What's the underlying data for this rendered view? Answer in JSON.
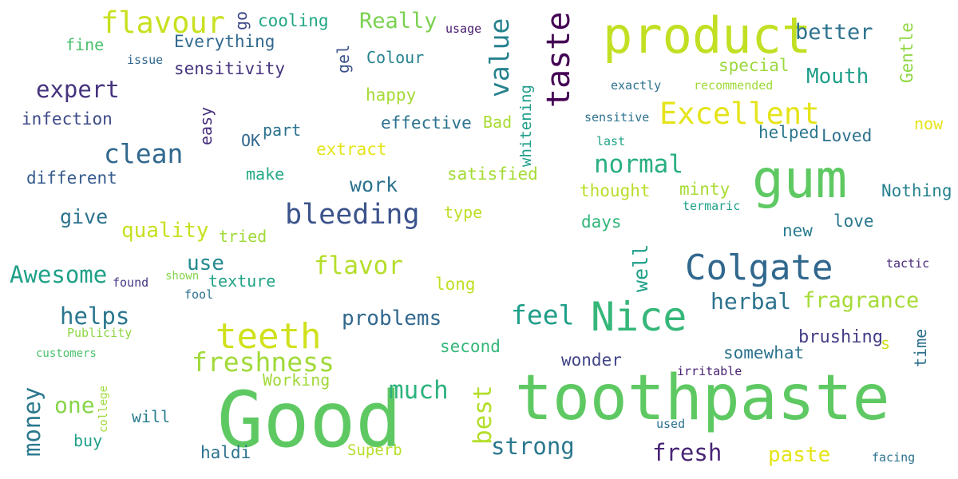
{
  "words": [
    {
      "text": "Good",
      "color": "#5ec962"
    },
    {
      "text": "toothpaste",
      "color": "#5ec962"
    },
    {
      "text": "product",
      "color": "#c2df23"
    },
    {
      "text": "gum",
      "color": "#5ec962"
    },
    {
      "text": "Nice",
      "color": "#35b779"
    },
    {
      "text": "Colgate",
      "color": "#31688e"
    },
    {
      "text": "teeth",
      "color": "#d0e11c"
    },
    {
      "text": "taste",
      "color": "#440154"
    },
    {
      "text": "Excellent",
      "color": "#e5e419"
    },
    {
      "text": "bleeding",
      "color": "#3b528b"
    },
    {
      "text": "flavour",
      "color": "#c8e020"
    },
    {
      "text": "clean",
      "color": "#31688e"
    },
    {
      "text": "freshness",
      "color": "#a0da39"
    },
    {
      "text": "value",
      "color": "#26828e"
    },
    {
      "text": "normal",
      "color": "#29af7f"
    },
    {
      "text": "feel",
      "color": "#1f9e89"
    },
    {
      "text": "flavor",
      "color": "#b5de2b"
    },
    {
      "text": "strong",
      "color": "#2a788e"
    },
    {
      "text": "fresh",
      "color": "#482475"
    },
    {
      "text": "herbal",
      "color": "#2c728e"
    },
    {
      "text": "fragrance",
      "color": "#a5db36"
    },
    {
      "text": "much",
      "color": "#2db27d"
    },
    {
      "text": "best",
      "color": "#b5de2b"
    },
    {
      "text": "Awesome",
      "color": "#1fa088"
    },
    {
      "text": "expert",
      "color": "#46337e"
    },
    {
      "text": "money",
      "color": "#2a788e"
    },
    {
      "text": "helps",
      "color": "#2a768e"
    },
    {
      "text": "Mouth",
      "color": "#1f9e89"
    },
    {
      "text": "better",
      "color": "#2c728e"
    },
    {
      "text": "quality",
      "color": "#c8e020"
    },
    {
      "text": "paste",
      "color": "#e5e419"
    },
    {
      "text": "problems",
      "color": "#31688e"
    },
    {
      "text": "Really",
      "color": "#7ad151"
    },
    {
      "text": "work",
      "color": "#2c728e"
    },
    {
      "text": "one",
      "color": "#86d549"
    },
    {
      "text": "use",
      "color": "#23898e"
    },
    {
      "text": "give",
      "color": "#2c728e"
    },
    {
      "text": "well",
      "color": "#1fa088"
    },
    {
      "text": "brushing",
      "color": "#433e85"
    },
    {
      "text": "wonder",
      "color": "#414487"
    },
    {
      "text": "somewhat",
      "color": "#2c728e"
    },
    {
      "text": "satisfied",
      "color": "#a5db36"
    },
    {
      "text": "sensitivity",
      "color": "#46337e"
    },
    {
      "text": "Everything",
      "color": "#31688e"
    },
    {
      "text": "Nothing",
      "color": "#26828e"
    },
    {
      "text": "effective",
      "color": "#2c728e"
    },
    {
      "text": "special",
      "color": "#9bd93c"
    },
    {
      "text": "different",
      "color": "#365c8d"
    },
    {
      "text": "infection",
      "color": "#3e4a89"
    },
    {
      "text": "cooling",
      "color": "#22a785"
    },
    {
      "text": "Gentle",
      "color": "#90d743"
    },
    {
      "text": "helped",
      "color": "#2a788e"
    },
    {
      "text": "Loved",
      "color": "#2d708e"
    },
    {
      "text": "minty",
      "color": "#a8db34"
    },
    {
      "text": "thought",
      "color": "#b8de29"
    },
    {
      "text": "happy",
      "color": "#a5db36"
    },
    {
      "text": "extract",
      "color": "#e5e419"
    },
    {
      "text": "haldi",
      "color": "#2c728e"
    },
    {
      "text": "Superb",
      "color": "#b5de2b"
    },
    {
      "text": "long",
      "color": "#c2df23"
    },
    {
      "text": "second",
      "color": "#35b779"
    },
    {
      "text": "tried",
      "color": "#a0da39"
    },
    {
      "text": "texture",
      "color": "#20a386"
    },
    {
      "text": "Working",
      "color": "#a0da39"
    },
    {
      "text": "time",
      "color": "#2d708e"
    },
    {
      "text": "love",
      "color": "#2a788e"
    },
    {
      "text": "new",
      "color": "#287c8e"
    },
    {
      "text": "days",
      "color": "#32b67a"
    },
    {
      "text": "type",
      "color": "#bddf26"
    },
    {
      "text": "make",
      "color": "#22a884"
    },
    {
      "text": "part",
      "color": "#2c728e"
    },
    {
      "text": "OK",
      "color": "#31688e"
    },
    {
      "text": "easy",
      "color": "#472f7d"
    },
    {
      "text": "go",
      "color": "#3e4989"
    },
    {
      "text": "gel",
      "color": "#3b528b"
    },
    {
      "text": "Colour",
      "color": "#26828e"
    },
    {
      "text": "whitening",
      "color": "#1f9e89"
    },
    {
      "text": "Bad",
      "color": "#a8db34"
    },
    {
      "text": "buy",
      "color": "#1fa188"
    },
    {
      "text": "will",
      "color": "#287d8e"
    },
    {
      "text": "fine",
      "color": "#4ac16d"
    },
    {
      "text": "s",
      "color": "#d0e11c"
    },
    {
      "text": "now",
      "color": "#e5e419"
    },
    {
      "text": "exactly",
      "color": "#2c728e"
    },
    {
      "text": "recommended",
      "color": "#a0da39"
    },
    {
      "text": "sensitive",
      "color": "#2c728e"
    },
    {
      "text": "last",
      "color": "#20a386"
    },
    {
      "text": "termaric",
      "color": "#1fa088"
    },
    {
      "text": "tactic",
      "color": "#482878"
    },
    {
      "text": "usage",
      "color": "#481b6d"
    },
    {
      "text": "issue",
      "color": "#31688e"
    },
    {
      "text": "found",
      "color": "#443983"
    },
    {
      "text": "fool",
      "color": "#2c728e"
    },
    {
      "text": "shown",
      "color": "#84d44b"
    },
    {
      "text": "Publicity",
      "color": "#8ed645"
    },
    {
      "text": "customers",
      "color": "#4ac16d"
    },
    {
      "text": "college",
      "color": "#9fda3a"
    },
    {
      "text": "irritable",
      "color": "#482173"
    },
    {
      "text": "used",
      "color": "#2c728e"
    },
    {
      "text": "facing",
      "color": "#2c728e"
    }
  ]
}
